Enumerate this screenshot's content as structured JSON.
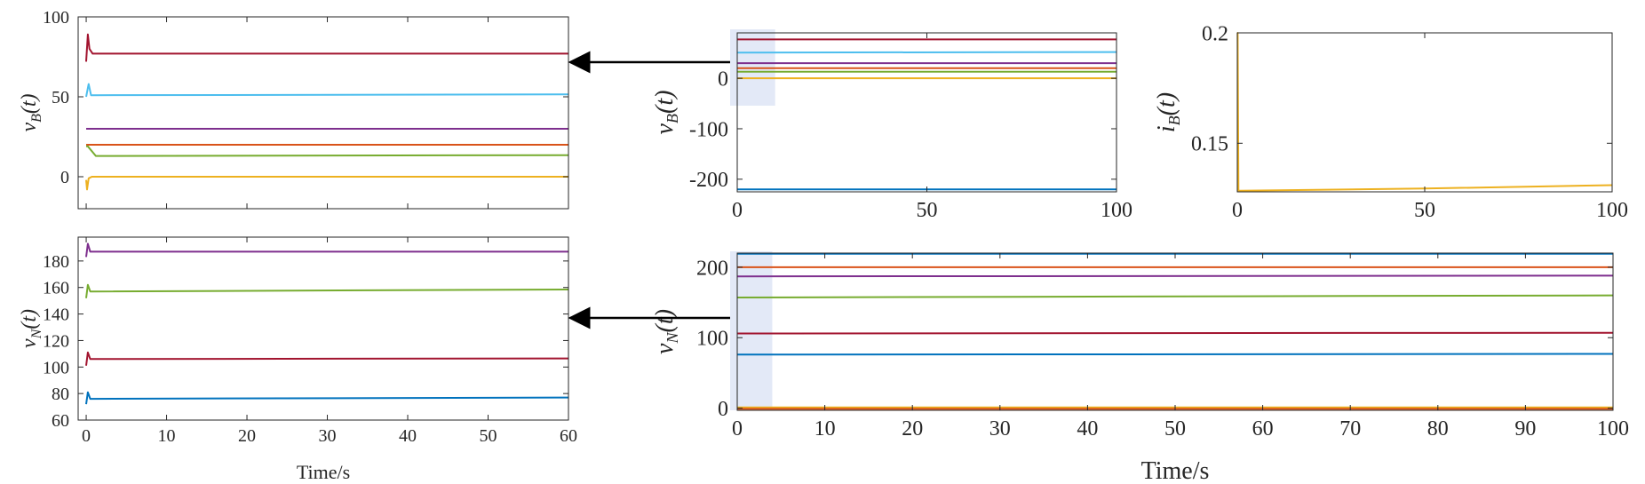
{
  "colors": {
    "blue": "#0072BD",
    "orange": "#D95319",
    "yellow": "#EDB120",
    "purple": "#7E2F8E",
    "green": "#77AC30",
    "cyan": "#4DBEEE",
    "crimson": "#A2142F",
    "highlight": "#e3e9f7",
    "arrow": "#000000"
  },
  "chart_data": [
    {
      "id": "vb-zoom",
      "type": "line",
      "ylabel_var": "v",
      "ylabel_sub": "B",
      "ylabel_arg": "(t)",
      "xlabel": "",
      "xlim": [
        -1,
        60
      ],
      "ylim": [
        -20,
        100
      ],
      "xticks": [
        0,
        10,
        20,
        30,
        40,
        50,
        60
      ],
      "xtick_labels": [
        "",
        "",
        "",
        "",
        "",
        "",
        ""
      ],
      "yticks": [
        0,
        50,
        100
      ],
      "ytick_labels": [
        "0",
        "50",
        "100"
      ],
      "series": [
        {
          "color": "crimson",
          "x": [
            0,
            0.2,
            0.4,
            0.8,
            60
          ],
          "y": [
            72,
            89,
            80,
            77,
            77
          ]
        },
        {
          "color": "cyan",
          "x": [
            0,
            0.3,
            0.6,
            60
          ],
          "y": [
            50,
            58,
            51,
            51.5
          ]
        },
        {
          "color": "purple",
          "x": [
            0,
            60
          ],
          "y": [
            30,
            30
          ]
        },
        {
          "color": "orange",
          "x": [
            0,
            60
          ],
          "y": [
            20,
            20
          ]
        },
        {
          "color": "green",
          "x": [
            0,
            0.2,
            1.2,
            60
          ],
          "y": [
            19,
            19,
            13,
            13.5
          ]
        },
        {
          "color": "yellow",
          "x": [
            0,
            0.1,
            0.3,
            0.7,
            60
          ],
          "y": [
            -2,
            -8,
            -1,
            0,
            0
          ]
        }
      ]
    },
    {
      "id": "vn-zoom",
      "type": "line",
      "ylabel_var": "v",
      "ylabel_sub": "N",
      "ylabel_arg": "(t)",
      "xlabel": "Time/s",
      "xlim": [
        -1,
        60
      ],
      "ylim": [
        60,
        198
      ],
      "xticks": [
        0,
        10,
        20,
        30,
        40,
        50,
        60
      ],
      "xtick_labels": [
        "0",
        "10",
        "20",
        "30",
        "40",
        "50",
        "60"
      ],
      "yticks": [
        60,
        80,
        100,
        120,
        140,
        160,
        180
      ],
      "ytick_labels": [
        "60",
        "80",
        "100",
        "120",
        "140",
        "160",
        "180"
      ],
      "series": [
        {
          "color": "purple",
          "x": [
            0,
            0.2,
            0.5,
            60
          ],
          "y": [
            183,
            193,
            187,
            187
          ]
        },
        {
          "color": "green",
          "x": [
            0,
            0.2,
            0.5,
            60
          ],
          "y": [
            152,
            162,
            157,
            158.5
          ]
        },
        {
          "color": "crimson",
          "x": [
            0,
            0.2,
            0.5,
            60
          ],
          "y": [
            101,
            111,
            106,
            106.5
          ]
        },
        {
          "color": "blue",
          "x": [
            0,
            0.2,
            0.5,
            60
          ],
          "y": [
            72,
            81,
            76,
            77
          ]
        }
      ]
    },
    {
      "id": "vb-full",
      "type": "line",
      "ylabel_var": "v",
      "ylabel_sub": "B",
      "ylabel_arg": "(t)",
      "xlabel": "",
      "xlim": [
        0,
        100
      ],
      "ylim": [
        -225,
        90
      ],
      "xticks": [
        0,
        50,
        100
      ],
      "xtick_labels": [
        "0",
        "50",
        "100"
      ],
      "yticks": [
        0,
        -100,
        -200
      ],
      "ytick_labels": [
        "0",
        "-100",
        "-200"
      ],
      "highlight_x": [
        -2,
        10
      ],
      "series": [
        {
          "color": "crimson",
          "x": [
            0,
            100
          ],
          "y": [
            77,
            77
          ]
        },
        {
          "color": "cyan",
          "x": [
            0,
            100
          ],
          "y": [
            51,
            52
          ]
        },
        {
          "color": "purple",
          "x": [
            0,
            100
          ],
          "y": [
            30,
            30
          ]
        },
        {
          "color": "orange",
          "x": [
            0,
            100
          ],
          "y": [
            20,
            20
          ]
        },
        {
          "color": "green",
          "x": [
            0,
            100
          ],
          "y": [
            13,
            13
          ]
        },
        {
          "color": "yellow",
          "x": [
            0,
            100
          ],
          "y": [
            0,
            0
          ]
        },
        {
          "color": "blue",
          "x": [
            0,
            100
          ],
          "y": [
            -220,
            -220
          ]
        }
      ]
    },
    {
      "id": "ib",
      "type": "line",
      "ylabel_var": "i",
      "ylabel_sub": "B",
      "ylabel_arg": "(t)",
      "xlabel": "",
      "xlim": [
        0,
        100
      ],
      "ylim": [
        0.128,
        0.2
      ],
      "xticks": [
        0,
        50,
        100
      ],
      "xtick_labels": [
        "0",
        "50",
        "100"
      ],
      "yticks": [
        0.15,
        0.2
      ],
      "ytick_labels": [
        "0.15",
        "0.2"
      ],
      "series": [
        {
          "color": "yellow",
          "x": [
            0,
            0.1,
            0.3,
            50,
            100
          ],
          "y": [
            0.2,
            0.2,
            0.1285,
            0.1295,
            0.131
          ]
        }
      ]
    },
    {
      "id": "vn-full",
      "type": "line",
      "ylabel_var": "v",
      "ylabel_sub": "N",
      "ylabel_arg": "(t)",
      "xlabel": "Time/s",
      "xlim": [
        0,
        100
      ],
      "ylim": [
        -3,
        220
      ],
      "xticks": [
        0,
        10,
        20,
        30,
        40,
        50,
        60,
        70,
        80,
        90,
        100
      ],
      "xtick_labels": [
        "0",
        "10",
        "20",
        "30",
        "40",
        "50",
        "60",
        "70",
        "80",
        "90",
        "100"
      ],
      "yticks": [
        0,
        100,
        200
      ],
      "ytick_labels": [
        "0",
        "100",
        "200"
      ],
      "highlight_x": [
        -1,
        4
      ],
      "series": [
        {
          "color": "blue",
          "x": [
            0,
            100
          ],
          "y": [
            219,
            219
          ]
        },
        {
          "color": "orange",
          "x": [
            0,
            100
          ],
          "y": [
            200,
            200
          ]
        },
        {
          "color": "purple",
          "x": [
            0,
            100
          ],
          "y": [
            187,
            188
          ]
        },
        {
          "color": "green",
          "x": [
            0,
            100
          ],
          "y": [
            157,
            160
          ]
        },
        {
          "color": "crimson",
          "x": [
            0,
            100
          ],
          "y": [
            106,
            107
          ]
        },
        {
          "color": "blue",
          "x": [
            0,
            100
          ],
          "y": [
            76,
            77
          ]
        },
        {
          "color": "yellow",
          "x": [
            0,
            100
          ],
          "y": [
            1,
            1
          ]
        },
        {
          "color": "orange",
          "x": [
            0,
            100
          ],
          "y": [
            -1,
            -1
          ]
        }
      ]
    }
  ]
}
